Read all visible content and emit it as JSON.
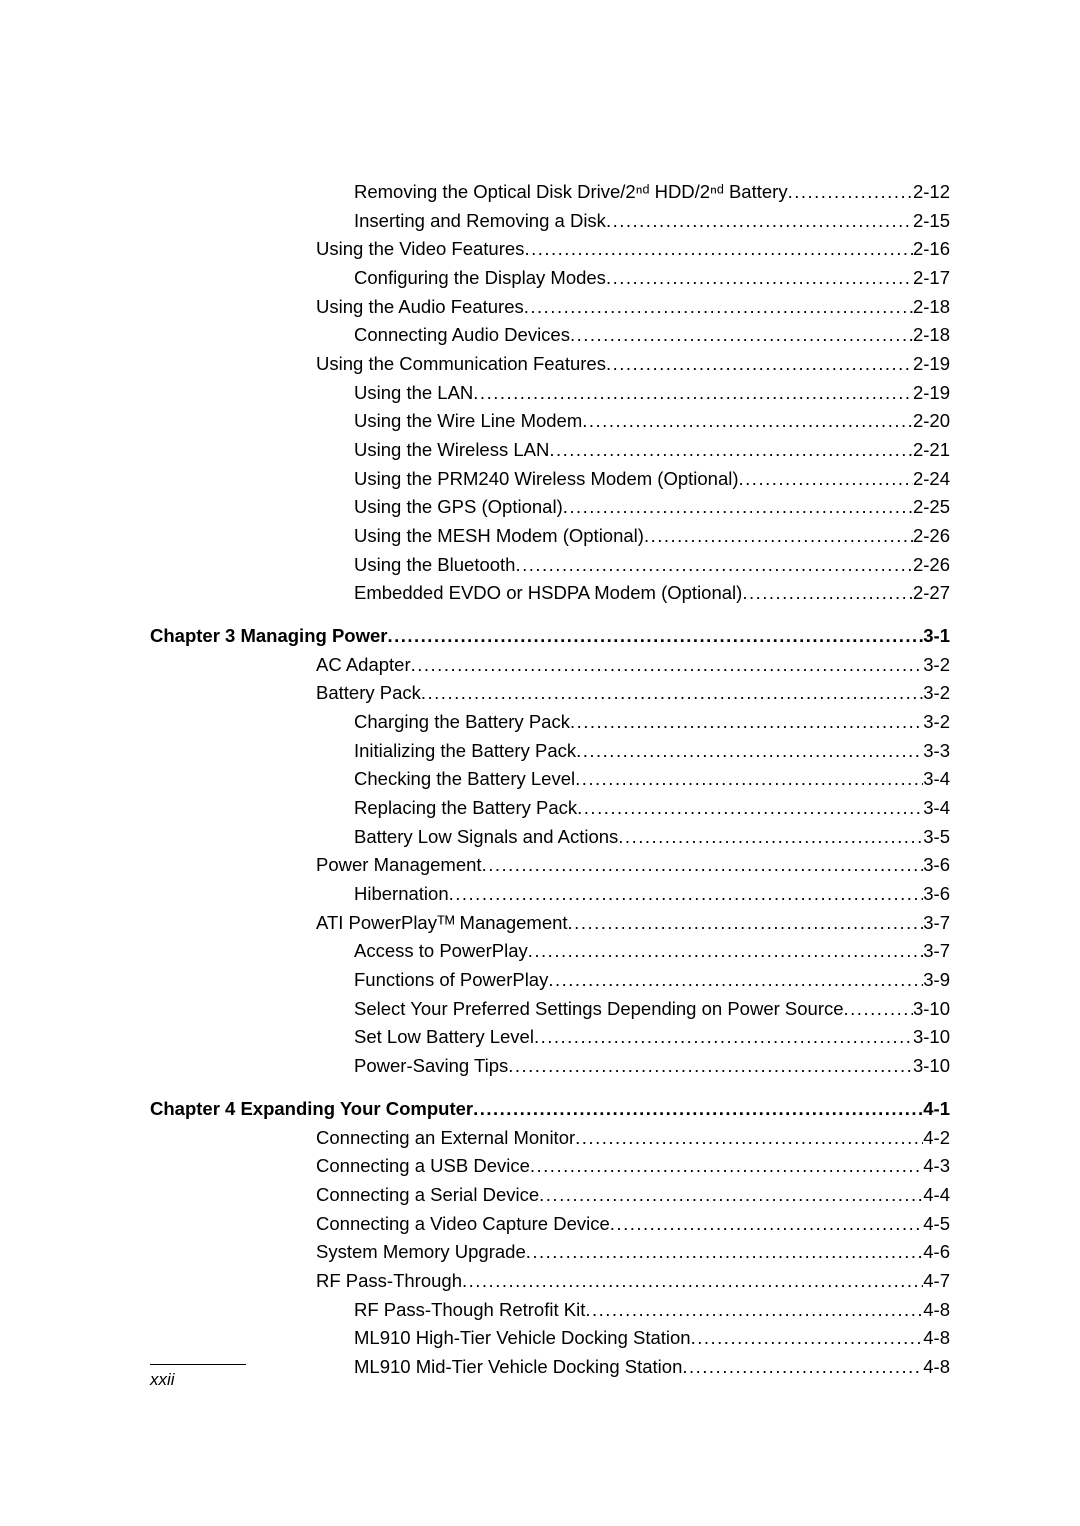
{
  "toc": {
    "sections": [
      {
        "gap_before": false,
        "lines": [
          {
            "indent": 3,
            "bold": false,
            "label": "Removing the Optical Disk Drive/2ⁿᵈ HDD/2ⁿᵈ Battery",
            "page": "2-12"
          },
          {
            "indent": 3,
            "bold": false,
            "label": "Inserting and Removing a Disk",
            "page": "2-15"
          },
          {
            "indent": 2,
            "bold": false,
            "label": "Using the Video Features",
            "page": "2-16"
          },
          {
            "indent": 3,
            "bold": false,
            "label": "Configuring the Display Modes",
            "page": "2-17"
          },
          {
            "indent": 2,
            "bold": false,
            "label": "Using the Audio Features",
            "page": "2-18"
          },
          {
            "indent": 3,
            "bold": false,
            "label": "Connecting Audio Devices",
            "page": "2-18"
          },
          {
            "indent": 2,
            "bold": false,
            "label": "Using the Communication Features",
            "page": "2-19"
          },
          {
            "indent": 3,
            "bold": false,
            "label": "Using the LAN",
            "page": "2-19"
          },
          {
            "indent": 3,
            "bold": false,
            "label": "Using the Wire Line Modem",
            "page": "2-20"
          },
          {
            "indent": 3,
            "bold": false,
            "label": "Using the Wireless LAN",
            "page": "2-21"
          },
          {
            "indent": 3,
            "bold": false,
            "label": "Using the PRM240 Wireless Modem (Optional)",
            "page": "2-24"
          },
          {
            "indent": 3,
            "bold": false,
            "label": "Using the GPS (Optional)",
            "page": "2-25"
          },
          {
            "indent": 3,
            "bold": false,
            "label": "Using the MESH Modem (Optional)",
            "page": "2-26"
          },
          {
            "indent": 3,
            "bold": false,
            "label": "Using the Bluetooth",
            "page": "2-26"
          },
          {
            "indent": 3,
            "bold": false,
            "label": "Embedded EVDO or HSDPA Modem (Optional)",
            "page": "2-27"
          }
        ]
      },
      {
        "gap_before": true,
        "lines": [
          {
            "indent": 0,
            "bold": true,
            "label": "Chapter 3  Managing Power",
            "page": "3-1"
          },
          {
            "indent": 2,
            "bold": false,
            "label": "AC Adapter",
            "page": "3-2"
          },
          {
            "indent": 2,
            "bold": false,
            "label": "Battery Pack",
            "page": "3-2"
          },
          {
            "indent": 3,
            "bold": false,
            "label": "Charging the Battery Pack",
            "page": "3-2"
          },
          {
            "indent": 3,
            "bold": false,
            "label": "Initializing the Battery Pack",
            "page": "3-3"
          },
          {
            "indent": 3,
            "bold": false,
            "label": "Checking the Battery Level",
            "page": "3-4"
          },
          {
            "indent": 3,
            "bold": false,
            "label": "Replacing the Battery Pack",
            "page": "3-4"
          },
          {
            "indent": 3,
            "bold": false,
            "label": "Battery Low Signals and Actions",
            "page": "3-5"
          },
          {
            "indent": 2,
            "bold": false,
            "label": "Power Management",
            "page": "3-6"
          },
          {
            "indent": 3,
            "bold": false,
            "label": "Hibernation",
            "page": "3-6"
          },
          {
            "indent": 2,
            "bold": false,
            "label": "ATI PowerPlayᵀᴹ Management",
            "page": "3-7"
          },
          {
            "indent": 3,
            "bold": false,
            "label": "Access to PowerPlay",
            "page": "3-7"
          },
          {
            "indent": 3,
            "bold": false,
            "label": "Functions of PowerPlay",
            "page": "3-9"
          },
          {
            "indent": 3,
            "bold": false,
            "label": "Select Your Preferred Settings Depending on Power Source",
            "page": "3-10"
          },
          {
            "indent": 3,
            "bold": false,
            "label": "Set Low Battery Level",
            "page": "3-10"
          },
          {
            "indent": 3,
            "bold": false,
            "label": "Power-Saving Tips",
            "page": "3-10"
          }
        ]
      },
      {
        "gap_before": true,
        "lines": [
          {
            "indent": 0,
            "bold": true,
            "label": "Chapter 4  Expanding Your Computer",
            "page": "4-1"
          },
          {
            "indent": 2,
            "bold": false,
            "label": "Connecting an External Monitor",
            "page": "4-2"
          },
          {
            "indent": 2,
            "bold": false,
            "label": "Connecting a USB Device",
            "page": "4-3"
          },
          {
            "indent": 2,
            "bold": false,
            "label": "Connecting a Serial Device",
            "page": "4-4"
          },
          {
            "indent": 2,
            "bold": false,
            "label": "Connecting a Video Capture Device",
            "page": "4-5"
          },
          {
            "indent": 2,
            "bold": false,
            "label": "System Memory Upgrade",
            "page": "4-6"
          },
          {
            "indent": 2,
            "bold": false,
            "label": "RF Pass-Through",
            "page": "4-7"
          },
          {
            "indent": 3,
            "bold": false,
            "label": "RF Pass-Though Retrofit Kit",
            "page": "4-8"
          },
          {
            "indent": 3,
            "bold": false,
            "label": "ML910 High-Tier Vehicle Docking Station",
            "page": "4-8"
          },
          {
            "indent": 3,
            "bold": false,
            "label": "ML910 Mid-Tier Vehicle Docking Station",
            "page": "4-8"
          }
        ]
      }
    ]
  },
  "footer": {
    "page_number": "xxii"
  }
}
